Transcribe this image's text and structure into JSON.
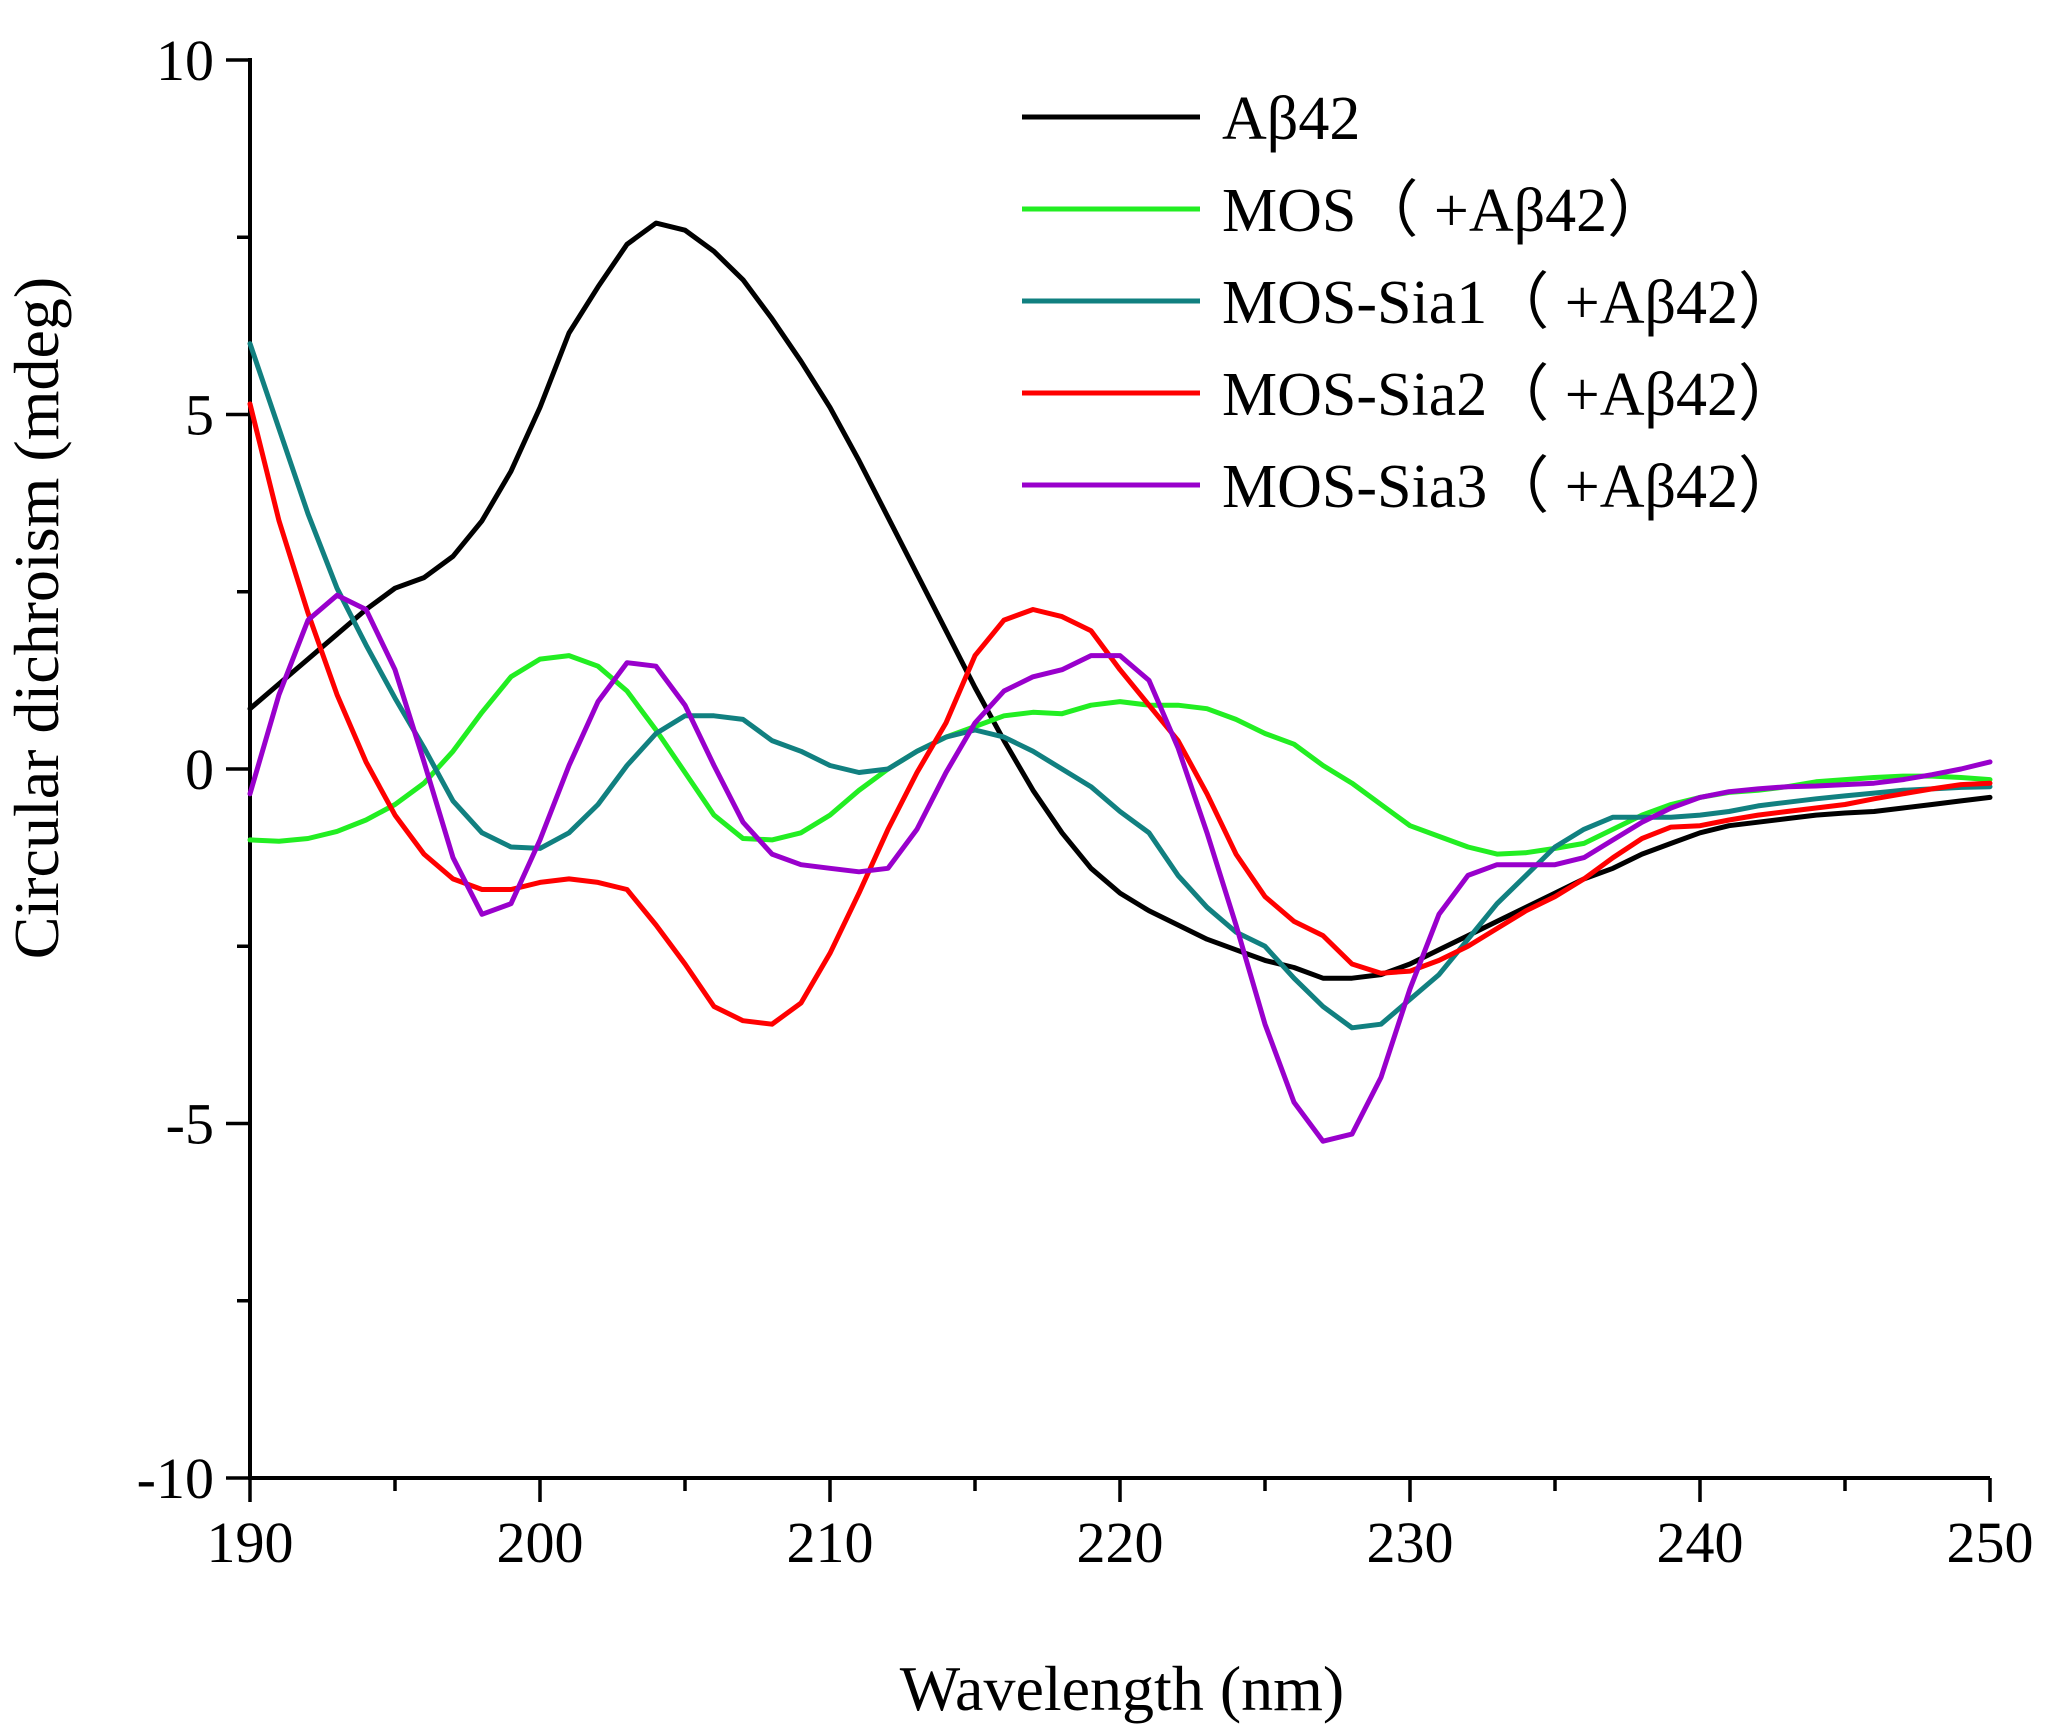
{
  "chart_data": {
    "type": "line",
    "xlabel": "Wavelength (nm)",
    "ylabel": "Circular dichroism (mdeg)",
    "xlim": [
      190,
      250
    ],
    "ylim": [
      -10,
      10
    ],
    "x_ticks": [
      190,
      200,
      210,
      220,
      230,
      240,
      250
    ],
    "y_ticks": [
      -10,
      -5,
      0,
      5,
      10
    ],
    "x_tick_labels": [
      "190",
      "200",
      "210",
      "220",
      "230",
      "240",
      "250"
    ],
    "y_tick_labels": [
      "-10",
      "-5",
      "0",
      "5",
      "10"
    ],
    "grid": false,
    "legend_position": "top-right",
    "x": [
      190,
      191,
      192,
      193,
      194,
      195,
      196,
      197,
      198,
      199,
      200,
      201,
      202,
      203,
      204,
      205,
      206,
      207,
      208,
      209,
      210,
      211,
      212,
      213,
      214,
      215,
      216,
      217,
      218,
      219,
      220,
      221,
      222,
      223,
      224,
      225,
      226,
      227,
      228,
      229,
      230,
      231,
      232,
      233,
      234,
      235,
      236,
      237,
      238,
      239,
      240,
      241,
      242,
      243,
      244,
      245,
      246,
      247,
      248,
      249,
      250
    ],
    "series": [
      {
        "name": "Aβ42",
        "color": "#000000",
        "values": [
          0.85,
          1.2,
          1.55,
          1.9,
          2.25,
          2.55,
          2.7,
          3.0,
          3.5,
          4.2,
          5.1,
          6.15,
          6.8,
          7.4,
          7.7,
          7.6,
          7.3,
          6.9,
          6.35,
          5.75,
          5.1,
          4.35,
          3.55,
          2.75,
          1.95,
          1.15,
          0.4,
          -0.3,
          -0.9,
          -1.4,
          -1.75,
          -2.0,
          -2.2,
          -2.4,
          -2.55,
          -2.7,
          -2.8,
          -2.95,
          -2.95,
          -2.9,
          -2.75,
          -2.55,
          -2.35,
          -2.15,
          -1.95,
          -1.75,
          -1.55,
          -1.4,
          -1.2,
          -1.05,
          -0.9,
          -0.8,
          -0.75,
          -0.7,
          -0.65,
          -0.62,
          -0.6,
          -0.55,
          -0.5,
          -0.45,
          -0.4
        ]
      },
      {
        "name": "MOS（ +Aβ42）",
        "color": "#22ee22",
        "values": [
          -1.0,
          -1.02,
          -0.98,
          -0.88,
          -0.72,
          -0.5,
          -0.2,
          0.25,
          0.8,
          1.3,
          1.55,
          1.6,
          1.45,
          1.1,
          0.55,
          -0.05,
          -0.65,
          -0.98,
          -1.0,
          -0.9,
          -0.65,
          -0.3,
          0.0,
          0.25,
          0.45,
          0.6,
          0.75,
          0.8,
          0.78,
          0.9,
          0.95,
          0.9,
          0.9,
          0.85,
          0.7,
          0.5,
          0.35,
          0.05,
          -0.2,
          -0.5,
          -0.8,
          -0.95,
          -1.1,
          -1.2,
          -1.18,
          -1.12,
          -1.05,
          -0.85,
          -0.65,
          -0.5,
          -0.4,
          -0.33,
          -0.3,
          -0.25,
          -0.18,
          -0.15,
          -0.12,
          -0.1,
          -0.1,
          -0.12,
          -0.15
        ]
      },
      {
        "name": "MOS-Sia1（ +Aβ42）",
        "color": "#118080",
        "values": [
          6.0,
          4.8,
          3.6,
          2.55,
          1.75,
          1.0,
          0.3,
          -0.45,
          -0.9,
          -1.1,
          -1.12,
          -0.9,
          -0.5,
          0.05,
          0.5,
          0.75,
          0.75,
          0.7,
          0.4,
          0.25,
          0.05,
          -0.05,
          0.0,
          0.25,
          0.45,
          0.55,
          0.45,
          0.25,
          0.0,
          -0.25,
          -0.6,
          -0.9,
          -1.5,
          -1.95,
          -2.3,
          -2.5,
          -2.95,
          -3.35,
          -3.65,
          -3.6,
          -3.25,
          -2.9,
          -2.4,
          -1.9,
          -1.5,
          -1.1,
          -0.85,
          -0.68,
          -0.68,
          -0.68,
          -0.65,
          -0.6,
          -0.52,
          -0.47,
          -0.42,
          -0.38,
          -0.34,
          -0.3,
          -0.28,
          -0.26,
          -0.25
        ]
      },
      {
        "name": "MOS-Sia2（ +Aβ42）",
        "color": "#ff0000",
        "values": [
          5.15,
          3.5,
          2.2,
          1.05,
          0.1,
          -0.65,
          -1.2,
          -1.55,
          -1.7,
          -1.7,
          -1.6,
          -1.55,
          -1.6,
          -1.7,
          -2.2,
          -2.75,
          -3.35,
          -3.55,
          -3.6,
          -3.3,
          -2.6,
          -1.75,
          -0.85,
          -0.05,
          0.65,
          1.6,
          2.1,
          2.25,
          2.15,
          1.95,
          1.4,
          0.9,
          0.4,
          -0.35,
          -1.2,
          -1.8,
          -2.15,
          -2.35,
          -2.75,
          -2.88,
          -2.85,
          -2.7,
          -2.5,
          -2.25,
          -2.0,
          -1.8,
          -1.55,
          -1.25,
          -0.98,
          -0.82,
          -0.8,
          -0.72,
          -0.65,
          -0.6,
          -0.55,
          -0.5,
          -0.42,
          -0.35,
          -0.28,
          -0.22,
          -0.2
        ]
      },
      {
        "name": "MOS-Sia3（ +Aβ42）",
        "color": "#9900cc",
        "values": [
          -0.35,
          1.05,
          2.1,
          2.45,
          2.25,
          1.4,
          0.1,
          -1.25,
          -2.05,
          -1.9,
          -1.0,
          0.05,
          0.95,
          1.5,
          1.45,
          0.9,
          0.05,
          -0.75,
          -1.2,
          -1.35,
          -1.4,
          -1.45,
          -1.4,
          -0.85,
          -0.05,
          0.65,
          1.1,
          1.3,
          1.4,
          1.6,
          1.6,
          1.25,
          0.3,
          -0.9,
          -2.2,
          -3.6,
          -4.7,
          -5.25,
          -5.15,
          -4.35,
          -3.1,
          -2.05,
          -1.5,
          -1.35,
          -1.35,
          -1.35,
          -1.25,
          -1.0,
          -0.75,
          -0.55,
          -0.4,
          -0.32,
          -0.28,
          -0.25,
          -0.24,
          -0.22,
          -0.2,
          -0.15,
          -0.08,
          0.0,
          0.1
        ]
      }
    ]
  }
}
